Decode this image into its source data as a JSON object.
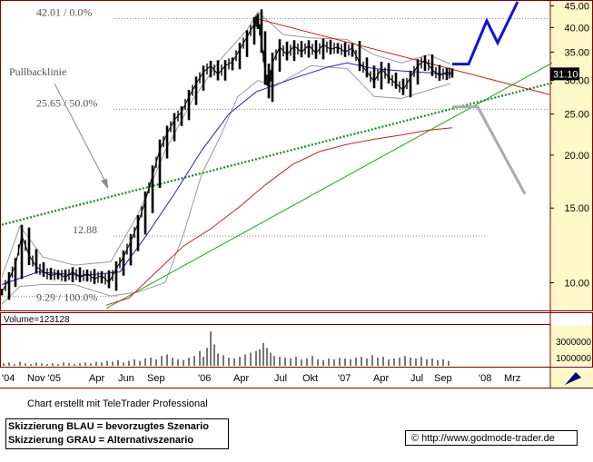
{
  "chart_data": {
    "type": "line",
    "price_scale": "log",
    "ylim": [
      8.6,
      46
    ],
    "y_ticks": [
      "45.00",
      "40.00",
      "35.00",
      "30.00",
      "25.00",
      "20.00",
      "15.00",
      "10.00"
    ],
    "x_tick_labels": [
      "'04",
      "Nov '05",
      "Apr",
      "Jun",
      "Sep",
      "'06",
      "Apr",
      "Jul",
      "Okt",
      "'07",
      "Apr",
      "Jul",
      "Sep",
      "'08",
      "Mrz"
    ],
    "last_price": "31.10",
    "horizontal_levels": [
      {
        "label": "42.01 / 0.0%",
        "value": 42.01
      },
      {
        "label": "25.65 / 50.0%",
        "value": 25.65
      },
      {
        "label": "12.88",
        "value": 12.88
      },
      {
        "label": "9.29 / 100.0%",
        "value": 9.29
      }
    ],
    "annotations": [
      "Pullbacklinie"
    ],
    "volume": {
      "label": "Volume=123128",
      "y_ticks": [
        "3000000",
        "1000000"
      ]
    },
    "price_path": [
      [
        0,
        9.5
      ],
      [
        8,
        10.2
      ],
      [
        15,
        11.0
      ],
      [
        22,
        12.9
      ],
      [
        30,
        11.6
      ],
      [
        38,
        10.9
      ],
      [
        46,
        10.6
      ],
      [
        54,
        10.4
      ],
      [
        62,
        10.5
      ],
      [
        70,
        10.3
      ],
      [
        78,
        10.6
      ],
      [
        86,
        10.3
      ],
      [
        94,
        10.5
      ],
      [
        102,
        10.2
      ],
      [
        110,
        10.4
      ],
      [
        118,
        10.0
      ],
      [
        126,
        10.8
      ],
      [
        134,
        11.5
      ],
      [
        142,
        12.5
      ],
      [
        150,
        13.8
      ],
      [
        158,
        15.6
      ],
      [
        166,
        17.9
      ],
      [
        174,
        20.6
      ],
      [
        182,
        22.5
      ],
      [
        190,
        24.2
      ],
      [
        198,
        25.3
      ],
      [
        206,
        27.4
      ],
      [
        214,
        29.5
      ],
      [
        222,
        31.4
      ],
      [
        230,
        32.5
      ],
      [
        238,
        31.0
      ],
      [
        246,
        32.5
      ],
      [
        254,
        33.2
      ],
      [
        262,
        35.5
      ],
      [
        270,
        38.0
      ],
      [
        278,
        40.8
      ],
      [
        282,
        42.0
      ],
      [
        286,
        37.0
      ],
      [
        290,
        31.5
      ],
      [
        294,
        28.6
      ],
      [
        298,
        33.0
      ],
      [
        306,
        36.0
      ],
      [
        314,
        34.5
      ],
      [
        322,
        36.2
      ],
      [
        330,
        35.0
      ],
      [
        338,
        36.3
      ],
      [
        346,
        34.8
      ],
      [
        354,
        36.5
      ],
      [
        362,
        35.5
      ],
      [
        370,
        36.0
      ],
      [
        378,
        35.0
      ],
      [
        386,
        35.8
      ],
      [
        394,
        33.0
      ],
      [
        402,
        31.5
      ],
      [
        410,
        29.8
      ],
      [
        418,
        32.0
      ],
      [
        426,
        30.5
      ],
      [
        434,
        29.5
      ],
      [
        442,
        28.5
      ],
      [
        450,
        30.5
      ],
      [
        458,
        32.5
      ],
      [
        466,
        33.5
      ],
      [
        474,
        31.8
      ],
      [
        482,
        30.8
      ],
      [
        490,
        31.4
      ],
      [
        496,
        31.1
      ]
    ],
    "moving_averages": [
      {
        "color": "#1f1fd0",
        "path": [
          [
            0,
            9.9
          ],
          [
            40,
            10.6
          ],
          [
            90,
            10.4
          ],
          [
            130,
            10.6
          ],
          [
            160,
            13.0
          ],
          [
            190,
            16.2
          ],
          [
            220,
            20.5
          ],
          [
            250,
            25.0
          ],
          [
            280,
            28.2
          ],
          [
            320,
            30.3
          ],
          [
            360,
            32.3
          ],
          [
            380,
            33.0
          ],
          [
            410,
            32.0
          ],
          [
            440,
            31.6
          ],
          [
            470,
            31.3
          ],
          [
            494,
            31.0
          ]
        ]
      },
      {
        "color": "#cc2222",
        "path": [
          [
            115,
            8.85
          ],
          [
            140,
            9.2
          ],
          [
            170,
            10.6
          ],
          [
            200,
            12.2
          ],
          [
            230,
            13.4
          ],
          [
            260,
            15.0
          ],
          [
            290,
            17.0
          ],
          [
            320,
            19.0
          ],
          [
            350,
            20.4
          ],
          [
            380,
            21.2
          ],
          [
            410,
            21.8
          ],
          [
            440,
            22.3
          ],
          [
            470,
            22.9
          ],
          [
            496,
            23.2
          ]
        ]
      }
    ],
    "bollinger_upper": [
      [
        0,
        10.3
      ],
      [
        20,
        13.6
      ],
      [
        45,
        11.5
      ],
      [
        80,
        11.0
      ],
      [
        120,
        11.2
      ],
      [
        150,
        14.5
      ],
      [
        180,
        20.5
      ],
      [
        210,
        27.0
      ],
      [
        240,
        33.5
      ],
      [
        270,
        39.5
      ],
      [
        282,
        43.5
      ],
      [
        310,
        38.5
      ],
      [
        340,
        37.8
      ],
      [
        380,
        37.5
      ],
      [
        410,
        34.5
      ],
      [
        440,
        33.0
      ],
      [
        470,
        34.5
      ],
      [
        494,
        32.8
      ]
    ],
    "bollinger_lower": [
      [
        0,
        8.9
      ],
      [
        20,
        9.8
      ],
      [
        45,
        9.9
      ],
      [
        80,
        9.9
      ],
      [
        120,
        9.3
      ],
      [
        150,
        9.5
      ],
      [
        180,
        10.0
      ],
      [
        200,
        13.0
      ],
      [
        220,
        18.0
      ],
      [
        240,
        22.0
      ],
      [
        260,
        27.5
      ],
      [
        282,
        30.0
      ],
      [
        300,
        29.0
      ],
      [
        340,
        32.5
      ],
      [
        380,
        32.0
      ],
      [
        410,
        27.5
      ],
      [
        440,
        27.2
      ],
      [
        470,
        28.5
      ],
      [
        494,
        29.5
      ]
    ],
    "lines": [
      {
        "name": "red-downtrend",
        "color": "#dd1111",
        "from": [
          280,
          42.0
        ],
        "to": [
          603,
          27.8
        ]
      },
      {
        "name": "green-uptrend",
        "color": "#11aa11",
        "from": [
          115,
          8.7
        ],
        "to": [
          606,
          33.0
        ]
      },
      {
        "name": "pullback-line",
        "color": "#118811",
        "dotted": true,
        "from": [
          0,
          13.7
        ],
        "to": [
          606,
          29.6
        ]
      }
    ],
    "scenario_blue": [
      [
        496,
        32.8
      ],
      [
        514,
        32.8
      ],
      [
        534,
        41.5
      ],
      [
        546,
        36.8
      ],
      [
        568,
        46.0
      ]
    ],
    "scenario_grey": [
      [
        496,
        26.0
      ],
      [
        524,
        26.0
      ],
      [
        576,
        16.2
      ]
    ],
    "volume_bars": [
      [
        2,
        0.3
      ],
      [
        8,
        0.4
      ],
      [
        14,
        0.2
      ],
      [
        20,
        0.5
      ],
      [
        26,
        0.3
      ],
      [
        32,
        0.2
      ],
      [
        38,
        0.4
      ],
      [
        44,
        0.3
      ],
      [
        50,
        0.2
      ],
      [
        56,
        0.3
      ],
      [
        62,
        0.2
      ],
      [
        68,
        0.4
      ],
      [
        74,
        0.3
      ],
      [
        80,
        0.2
      ],
      [
        86,
        0.3
      ],
      [
        92,
        0.4
      ],
      [
        98,
        0.3
      ],
      [
        104,
        0.5
      ],
      [
        110,
        0.4
      ],
      [
        116,
        0.6
      ],
      [
        122,
        0.5
      ],
      [
        128,
        0.7
      ],
      [
        134,
        0.4
      ],
      [
        140,
        0.6
      ],
      [
        146,
        0.8
      ],
      [
        152,
        0.6
      ],
      [
        158,
        0.9
      ],
      [
        164,
        1.0
      ],
      [
        170,
        0.8
      ],
      [
        176,
        1.2
      ],
      [
        182,
        1.4
      ],
      [
        188,
        1.0
      ],
      [
        194,
        0.8
      ],
      [
        200,
        0.7
      ],
      [
        206,
        1.0
      ],
      [
        212,
        1.2
      ],
      [
        218,
        1.8
      ],
      [
        222,
        1.1
      ],
      [
        226,
        2.2
      ],
      [
        230,
        4.2
      ],
      [
        234,
        2.6
      ],
      [
        238,
        1.5
      ],
      [
        244,
        1.3
      ],
      [
        250,
        1.0
      ],
      [
        256,
        0.9
      ],
      [
        262,
        1.1
      ],
      [
        268,
        1.4
      ],
      [
        274,
        1.6
      ],
      [
        280,
        1.8
      ],
      [
        284,
        2.0
      ],
      [
        288,
        2.8
      ],
      [
        292,
        2.2
      ],
      [
        296,
        1.6
      ],
      [
        300,
        1.2
      ],
      [
        306,
        1.1
      ],
      [
        312,
        1.0
      ],
      [
        318,
        0.9
      ],
      [
        324,
        1.1
      ],
      [
        330,
        0.8
      ],
      [
        336,
        0.9
      ],
      [
        342,
        1.2
      ],
      [
        348,
        0.8
      ],
      [
        354,
        0.7
      ],
      [
        360,
        0.9
      ],
      [
        366,
        0.8
      ],
      [
        372,
        1.0
      ],
      [
        378,
        0.9
      ],
      [
        384,
        0.8
      ],
      [
        390,
        1.0
      ],
      [
        396,
        1.1
      ],
      [
        402,
        0.9
      ],
      [
        408,
        1.3
      ],
      [
        414,
        1.0
      ],
      [
        420,
        1.1
      ],
      [
        426,
        0.8
      ],
      [
        432,
        0.9
      ],
      [
        438,
        1.0
      ],
      [
        444,
        1.2
      ],
      [
        450,
        1.0
      ],
      [
        456,
        0.9
      ],
      [
        462,
        1.1
      ],
      [
        468,
        0.8
      ],
      [
        474,
        0.9
      ],
      [
        480,
        0.7
      ],
      [
        486,
        0.8
      ],
      [
        492,
        0.6
      ]
    ]
  },
  "footer": {
    "credit": "Chart erstellt mit TeleTrader Professional",
    "legend_blue": "Skizzierung BLAU = bevorzugtes Szenario",
    "legend_grey": "Skizzierung GRAU = Alternativszenario",
    "source": "© http://www.godmode-trader.de"
  },
  "colors": {
    "axis_panel": "#fff9c8",
    "frame": "#800000",
    "blue_scenario": "#1010e0",
    "grey_scenario": "#aaaaaa",
    "last_price_bg": "#000000"
  }
}
